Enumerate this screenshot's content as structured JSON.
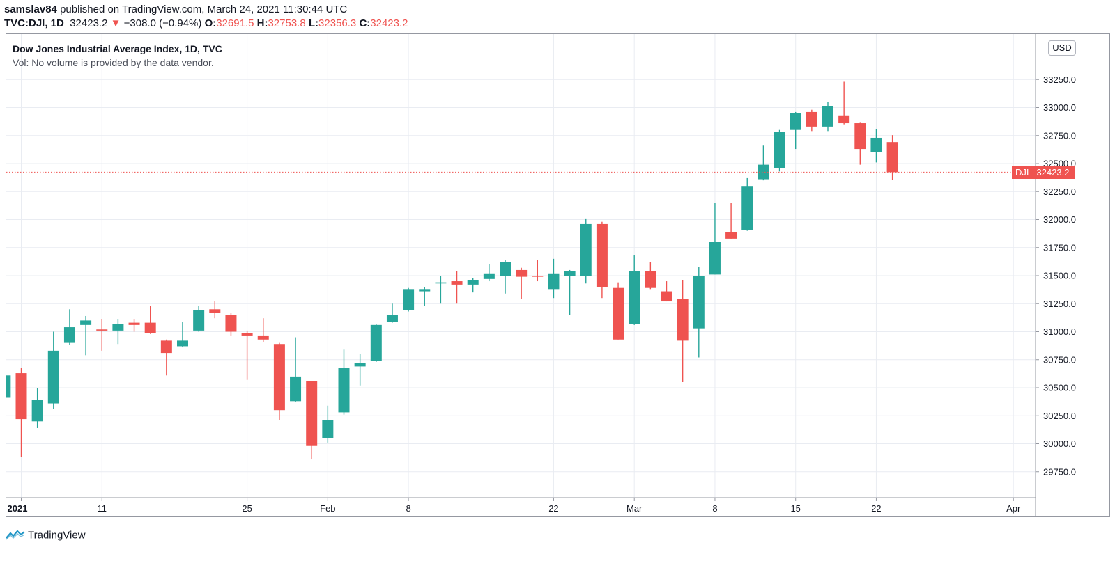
{
  "header": {
    "published": "samslav84 published on TradingView.com, March 24, 2021 11:30:44 UTC",
    "published_user": "samslav84",
    "published_rest": " published on TradingView.com, March 24, 2021 11:30:44 UTC",
    "symbol": "TVC:DJI, 1D",
    "last": "32423.2",
    "change": "−308.0 (−0.94%)",
    "change_arrow": "▼",
    "o_label": "O:",
    "o_value": "32691.5",
    "h_label": "H:",
    "h_value": "32753.8",
    "l_label": "L:",
    "l_value": "32356.3",
    "c_label": "C:",
    "c_value": "32423.2"
  },
  "legend": {
    "title": "Dow Jones Industrial Average Index, 1D, TVC",
    "volume_note": "Vol: No volume is provided by the data vendor."
  },
  "currency_button": "USD",
  "price_tag": {
    "symbol": "DJI",
    "value": "32423.2"
  },
  "brand": "TradingView",
  "colors": {
    "up": "#26a69a",
    "down": "#ef5350",
    "grid": "#e9ecf2",
    "axis": "#9598a1"
  },
  "chart_data": {
    "type": "candlestick",
    "title": "Dow Jones Industrial Average Index, 1D, TVC",
    "ylim": [
      29520,
      33520
    ],
    "y_ticks": [
      "29750.0",
      "30000.0",
      "30250.0",
      "30500.0",
      "30750.0",
      "31000.0",
      "31250.0",
      "31500.0",
      "31750.0",
      "32000.0",
      "32250.0",
      "32500.0",
      "32750.0",
      "33000.0",
      "33250.0"
    ],
    "x_tick_labels": [
      "2021",
      "11",
      "25",
      "Feb",
      "8",
      "22",
      "Mar",
      "8",
      "15",
      "22",
      "Apr"
    ],
    "last_price": 32423.2,
    "series": [
      {
        "date": "2020-12-31",
        "open": 30410,
        "high": 30640,
        "low": 30400,
        "close": 30610
      },
      {
        "date": "2021-01-04",
        "open": 30630,
        "high": 30680,
        "low": 29880,
        "close": 30220
      },
      {
        "date": "2021-01-05",
        "open": 30200,
        "high": 30500,
        "low": 30140,
        "close": 30390
      },
      {
        "date": "2021-01-06",
        "open": 30360,
        "high": 31000,
        "low": 30310,
        "close": 30830
      },
      {
        "date": "2021-01-07",
        "open": 30900,
        "high": 31200,
        "low": 30880,
        "close": 31040
      },
      {
        "date": "2021-01-08",
        "open": 31060,
        "high": 31140,
        "low": 30790,
        "close": 31100
      },
      {
        "date": "2021-01-11",
        "open": 31020,
        "high": 31110,
        "low": 30830,
        "close": 31010
      },
      {
        "date": "2021-01-12",
        "open": 31010,
        "high": 31110,
        "low": 30890,
        "close": 31070
      },
      {
        "date": "2021-01-13",
        "open": 31080,
        "high": 31110,
        "low": 31000,
        "close": 31060
      },
      {
        "date": "2021-01-14",
        "open": 31080,
        "high": 31230,
        "low": 30980,
        "close": 30990
      },
      {
        "date": "2021-01-15",
        "open": 30920,
        "high": 30930,
        "low": 30610,
        "close": 30810
      },
      {
        "date": "2021-01-19",
        "open": 30870,
        "high": 31090,
        "low": 30860,
        "close": 30920
      },
      {
        "date": "2021-01-20",
        "open": 31010,
        "high": 31230,
        "low": 31000,
        "close": 31190
      },
      {
        "date": "2021-01-21",
        "open": 31200,
        "high": 31270,
        "low": 31120,
        "close": 31170
      },
      {
        "date": "2021-01-22",
        "open": 31150,
        "high": 31170,
        "low": 30960,
        "close": 31000
      },
      {
        "date": "2021-01-25",
        "open": 30990,
        "high": 31010,
        "low": 30570,
        "close": 30960
      },
      {
        "date": "2021-01-26",
        "open": 30960,
        "high": 31120,
        "low": 30910,
        "close": 30930
      },
      {
        "date": "2021-01-27",
        "open": 30890,
        "high": 30900,
        "low": 30210,
        "close": 30300
      },
      {
        "date": "2021-01-28",
        "open": 30380,
        "high": 30950,
        "low": 30370,
        "close": 30600
      },
      {
        "date": "2021-01-29",
        "open": 30560,
        "high": 30560,
        "low": 29860,
        "close": 29980
      },
      {
        "date": "2021-02-01",
        "open": 30050,
        "high": 30340,
        "low": 30010,
        "close": 30210
      },
      {
        "date": "2021-02-02",
        "open": 30280,
        "high": 30840,
        "low": 30260,
        "close": 30680
      },
      {
        "date": "2021-02-03",
        "open": 30690,
        "high": 30800,
        "low": 30520,
        "close": 30720
      },
      {
        "date": "2021-02-04",
        "open": 30740,
        "high": 31070,
        "low": 30730,
        "close": 31060
      },
      {
        "date": "2021-02-05",
        "open": 31090,
        "high": 31250,
        "low": 31080,
        "close": 31150
      },
      {
        "date": "2021-02-08",
        "open": 31190,
        "high": 31390,
        "low": 31180,
        "close": 31380
      },
      {
        "date": "2021-02-09",
        "open": 31360,
        "high": 31400,
        "low": 31230,
        "close": 31380
      },
      {
        "date": "2021-02-10",
        "open": 31430,
        "high": 31500,
        "low": 31250,
        "close": 31440
      },
      {
        "date": "2021-02-11",
        "open": 31450,
        "high": 31540,
        "low": 31250,
        "close": 31420
      },
      {
        "date": "2021-02-12",
        "open": 31420,
        "high": 31480,
        "low": 31350,
        "close": 31460
      },
      {
        "date": "2021-02-16",
        "open": 31470,
        "high": 31600,
        "low": 31450,
        "close": 31520
      },
      {
        "date": "2021-02-17",
        "open": 31500,
        "high": 31640,
        "low": 31340,
        "close": 31620
      },
      {
        "date": "2021-02-18",
        "open": 31550,
        "high": 31570,
        "low": 31290,
        "close": 31490
      },
      {
        "date": "2021-02-19",
        "open": 31500,
        "high": 31640,
        "low": 31450,
        "close": 31490
      },
      {
        "date": "2021-02-22",
        "open": 31380,
        "high": 31650,
        "low": 31300,
        "close": 31520
      },
      {
        "date": "2021-02-23",
        "open": 31500,
        "high": 31550,
        "low": 31150,
        "close": 31540
      },
      {
        "date": "2021-02-24",
        "open": 31500,
        "high": 32010,
        "low": 31430,
        "close": 31960
      },
      {
        "date": "2021-02-25",
        "open": 31960,
        "high": 31980,
        "low": 31300,
        "close": 31400
      },
      {
        "date": "2021-02-26",
        "open": 31390,
        "high": 31440,
        "low": 30930,
        "close": 30930
      },
      {
        "date": "2021-03-01",
        "open": 31070,
        "high": 31680,
        "low": 31060,
        "close": 31540
      },
      {
        "date": "2021-03-02",
        "open": 31540,
        "high": 31620,
        "low": 31380,
        "close": 31390
      },
      {
        "date": "2021-03-03",
        "open": 31360,
        "high": 31450,
        "low": 31270,
        "close": 31270
      },
      {
        "date": "2021-03-04",
        "open": 31290,
        "high": 31460,
        "low": 30550,
        "close": 30920
      },
      {
        "date": "2021-03-05",
        "open": 31030,
        "high": 31580,
        "low": 30770,
        "close": 31500
      },
      {
        "date": "2021-03-08",
        "open": 31510,
        "high": 32150,
        "low": 31510,
        "close": 31800
      },
      {
        "date": "2021-03-09",
        "open": 31890,
        "high": 32150,
        "low": 31830,
        "close": 31830
      },
      {
        "date": "2021-03-10",
        "open": 31910,
        "high": 32370,
        "low": 31900,
        "close": 32300
      },
      {
        "date": "2021-03-11",
        "open": 32360,
        "high": 32660,
        "low": 32350,
        "close": 32490
      },
      {
        "date": "2021-03-12",
        "open": 32460,
        "high": 32800,
        "low": 32430,
        "close": 32780
      },
      {
        "date": "2021-03-15",
        "open": 32800,
        "high": 32960,
        "low": 32630,
        "close": 32950
      },
      {
        "date": "2021-03-16",
        "open": 32960,
        "high": 32980,
        "low": 32790,
        "close": 32830
      },
      {
        "date": "2021-03-17",
        "open": 32830,
        "high": 33050,
        "low": 32790,
        "close": 33010
      },
      {
        "date": "2021-03-18",
        "open": 32930,
        "high": 33230,
        "low": 32850,
        "close": 32860
      },
      {
        "date": "2021-03-19",
        "open": 32860,
        "high": 32870,
        "low": 32490,
        "close": 32630
      },
      {
        "date": "2021-03-22",
        "open": 32600,
        "high": 32810,
        "low": 32510,
        "close": 32730
      },
      {
        "date": "2021-03-23",
        "open": 32691.5,
        "high": 32753.8,
        "low": 32356.3,
        "close": 32423.2
      }
    ]
  }
}
